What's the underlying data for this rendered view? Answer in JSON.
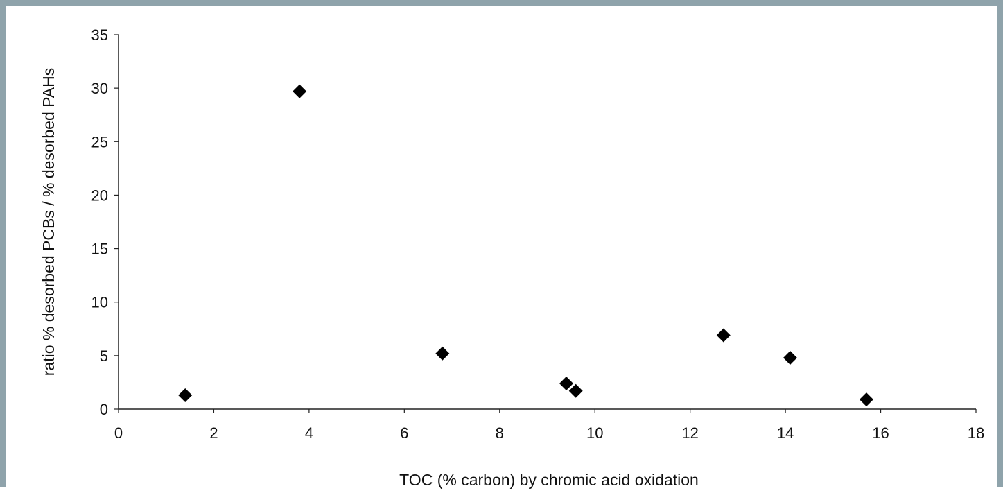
{
  "chart_data": {
    "type": "scatter",
    "title": "",
    "xlabel": "TOC (% carbon) by chromic acid oxidation",
    "ylabel": "ratio % desorbed PCBs / % desorbed PAHs",
    "xlim": [
      0,
      18
    ],
    "ylim": [
      0,
      35
    ],
    "x_ticks": [
      0,
      2,
      4,
      6,
      8,
      10,
      12,
      14,
      16,
      18
    ],
    "y_ticks": [
      0,
      5,
      10,
      15,
      20,
      25,
      30,
      35
    ],
    "grid": false,
    "legend": "none",
    "marker": "diamond",
    "marker_color": "#000000",
    "series": [
      {
        "x": [
          1.4,
          3.8,
          6.8,
          9.4,
          9.6,
          12.7,
          14.1,
          15.7
        ],
        "y": [
          1.3,
          29.7,
          5.2,
          2.4,
          1.7,
          6.9,
          4.8,
          0.9
        ]
      }
    ]
  }
}
